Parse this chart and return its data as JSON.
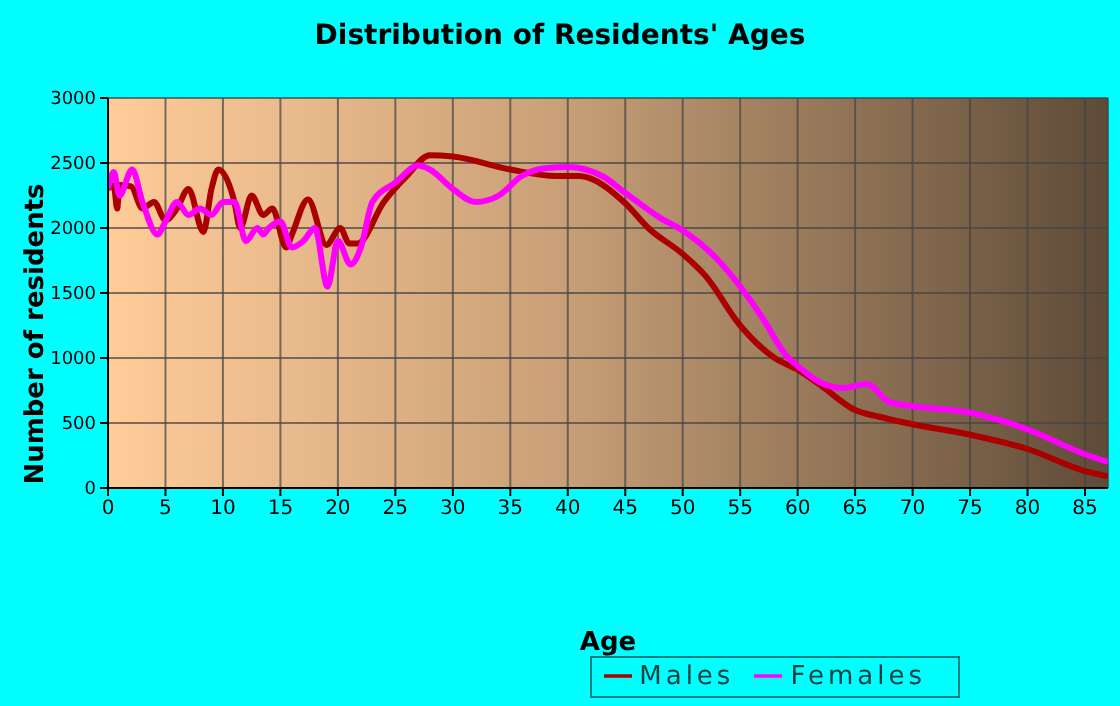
{
  "chart_data": {
    "type": "line",
    "title": "Distribution of Residents' Ages",
    "xlabel": "Age",
    "ylabel": "Number of residents",
    "xlim": [
      0,
      87
    ],
    "xticks": [
      0,
      5,
      10,
      15,
      20,
      25,
      30,
      35,
      40,
      45,
      50,
      55,
      60,
      65,
      70,
      75,
      80,
      85
    ],
    "ylim": [
      0,
      3000
    ],
    "yticks": [
      0,
      500,
      1000,
      1500,
      2000,
      2500,
      3000
    ],
    "grid": true,
    "legend": "bottom right",
    "marker": "none",
    "line_style": "solid",
    "series": [
      {
        "name": "Males",
        "color": "#aa0000",
        "x": [
          0,
          0.5,
          0.8,
          1,
          2,
          3,
          4,
          5,
          6,
          7,
          8.3,
          9,
          9.6,
          11,
          11.5,
          12.5,
          13.5,
          14.3,
          15.5,
          16,
          17.4,
          19,
          20.2,
          21,
          21.7,
          24,
          26,
          28,
          30,
          35,
          39,
          41,
          42,
          45,
          47,
          50,
          52,
          55,
          58,
          60,
          62,
          65,
          67,
          70,
          75,
          80,
          85,
          87
        ],
        "values": [
          2300,
          2330,
          2150,
          2330,
          2320,
          2150,
          2200,
          2060,
          2150,
          2300,
          1970,
          2300,
          2450,
          2200,
          2000,
          2250,
          2100,
          2150,
          1850,
          1950,
          2220,
          1870,
          2000,
          1880,
          1880,
          2200,
          2400,
          2560,
          2550,
          2450,
          2400,
          2400,
          2380,
          2190,
          2000,
          1800,
          1630,
          1250,
          1000,
          910,
          790,
          600,
          550,
          490,
          410,
          300,
          130,
          90
        ]
      },
      {
        "name": "Females",
        "color": "#ff00ff",
        "x": [
          0,
          0.5,
          1,
          2.1,
          3,
          4.3,
          5,
          6,
          7,
          8,
          9,
          10,
          11,
          12,
          13,
          13.5,
          14,
          15,
          16,
          17,
          18,
          19.1,
          20,
          21.1,
          22,
          23,
          25,
          27,
          28,
          30,
          32,
          34,
          36,
          38,
          40,
          43,
          45,
          48,
          50,
          53,
          55,
          57,
          59,
          60,
          62,
          64,
          66,
          68,
          70,
          75,
          78,
          80,
          85,
          87
        ],
        "values": [
          2300,
          2430,
          2250,
          2450,
          2200,
          1950,
          2050,
          2200,
          2100,
          2150,
          2100,
          2200,
          2200,
          1900,
          2000,
          1950,
          2000,
          2050,
          1850,
          1900,
          2000,
          1550,
          1900,
          1720,
          1850,
          2200,
          2350,
          2480,
          2450,
          2300,
          2200,
          2250,
          2400,
          2460,
          2470,
          2400,
          2270,
          2080,
          1980,
          1760,
          1550,
          1300,
          1020,
          940,
          810,
          770,
          800,
          660,
          630,
          580,
          510,
          450,
          260,
          200
        ]
      }
    ]
  }
}
